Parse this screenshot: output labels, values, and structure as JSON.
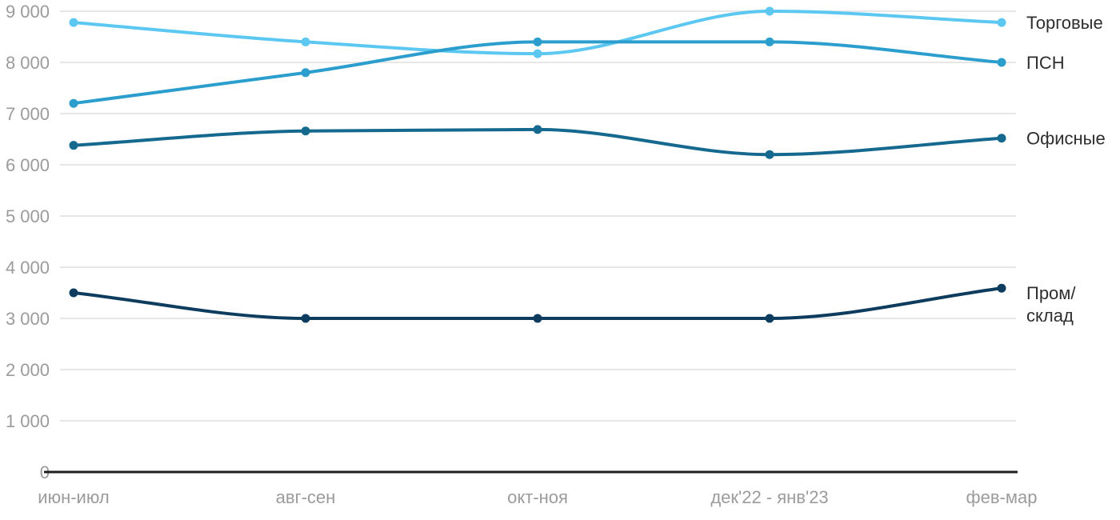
{
  "page": {
    "background": "#ffffff"
  },
  "chart_data": {
    "type": "line",
    "title": "",
    "categories": [
      "июн-июл",
      "авг-сен",
      "окт-ноя",
      "дек'22 - янв'23",
      "фев-мар"
    ],
    "series": [
      {
        "name": "Торговые",
        "color": "#5cc8f2",
        "values": [
          8780,
          8400,
          8170,
          9000,
          8780
        ]
      },
      {
        "name": "ПСН",
        "color": "#2b9ecd",
        "values": [
          7200,
          7800,
          8400,
          8400,
          8000
        ]
      },
      {
        "name": "Офисные",
        "color": "#15698f",
        "values": [
          6380,
          6660,
          6690,
          6200,
          6520
        ]
      },
      {
        "name": "Пром/склад",
        "color": "#0d3c5f",
        "values": [
          3500,
          3000,
          3000,
          3000,
          3590
        ]
      }
    ],
    "ylim": [
      0,
      9000
    ],
    "ytick_step": 1000,
    "ytick_labels": [
      "0",
      "1 000",
      "2 000",
      "3 000",
      "4 000",
      "5 000",
      "6 000",
      "7 000",
      "8 000",
      "9 000"
    ],
    "grid": "horizontal-only",
    "legend_position": "inline-right-of-last-point",
    "style": {
      "grid_color": "#e7e7e7",
      "axis_line_color": "#1f1f1f",
      "tick_label_color": "#9b9b9b",
      "series_label_color": "#2e2e2e",
      "line_width": 4,
      "dot_radius": 5.5
    }
  }
}
